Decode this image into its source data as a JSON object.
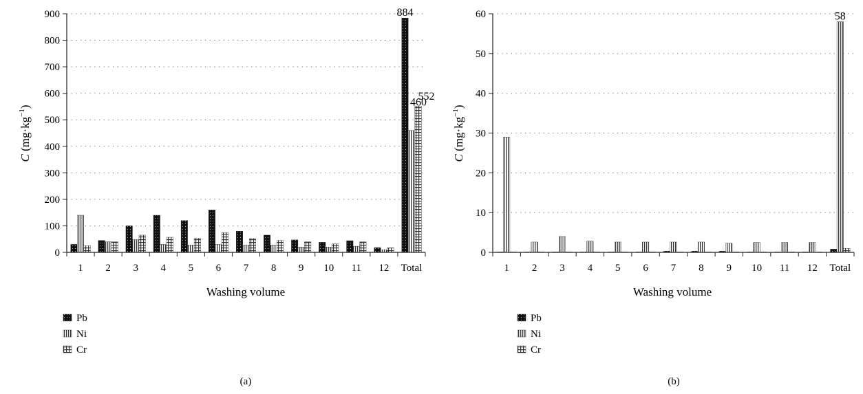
{
  "colors": {
    "pb": "#111111",
    "ni": "#444444",
    "cr": "#555555",
    "axis": "#222222",
    "grid": "#666666"
  },
  "chart_data": [
    {
      "type": "bar",
      "panel_label": "(a)",
      "xlabel": "Washing volume",
      "ylabel_prefix": "C",
      "ylabel_unit": " (mg·kg",
      "ylabel_exp": "−1",
      "ylabel_close": ")",
      "ylim": [
        0,
        900
      ],
      "yticks": [
        "0",
        "100",
        "200",
        "300",
        "400",
        "500",
        "600",
        "700",
        "800",
        "900"
      ],
      "grid": "horizontal dotted",
      "legend_position": "bottom-left",
      "categories": [
        "1",
        "2",
        "3",
        "4",
        "5",
        "6",
        "7",
        "8",
        "9",
        "10",
        "11",
        "12",
        "Total"
      ],
      "series": [
        {
          "name": "Pb",
          "values": [
            30,
            45,
            100,
            140,
            120,
            160,
            80,
            65,
            47,
            38,
            44,
            18,
            884
          ]
        },
        {
          "name": "Ni",
          "values": [
            140,
            40,
            48,
            30,
            28,
            30,
            28,
            28,
            20,
            20,
            23,
            10,
            460
          ]
        },
        {
          "name": "Cr",
          "values": [
            25,
            40,
            65,
            57,
            53,
            75,
            52,
            45,
            40,
            32,
            40,
            17,
            552
          ]
        }
      ],
      "data_labels": [
        {
          "series": "Pb",
          "category": "Total",
          "text": "884"
        },
        {
          "series": "Ni",
          "category": "Total",
          "text": "460"
        },
        {
          "series": "Cr",
          "category": "Total",
          "text": "552"
        }
      ]
    },
    {
      "type": "bar",
      "panel_label": "(b)",
      "xlabel": "Washing volume",
      "ylabel_prefix": "C",
      "ylabel_unit": " (mg·kg",
      "ylabel_exp": "−1",
      "ylabel_close": ")",
      "ylim": [
        0,
        60
      ],
      "yticks": [
        "0",
        "10",
        "20",
        "30",
        "40",
        "50",
        "60"
      ],
      "grid": "horizontal dotted",
      "legend_position": "bottom-left",
      "categories": [
        "1",
        "2",
        "3",
        "4",
        "5",
        "6",
        "7",
        "8",
        "9",
        "10",
        "11",
        "12",
        "Total"
      ],
      "series": [
        {
          "name": "Pb",
          "values": [
            0.1,
            0.05,
            0.05,
            0.05,
            0.05,
            0.05,
            0.3,
            0.3,
            0.3,
            0.05,
            0.05,
            0.05,
            0.8
          ]
        },
        {
          "name": "Ni",
          "values": [
            29,
            2.6,
            4,
            2.8,
            2.6,
            2.6,
            2.6,
            2.6,
            2.3,
            2.5,
            2.5,
            2.5,
            58
          ]
        },
        {
          "name": "Cr",
          "values": [
            0.1,
            0.1,
            0.1,
            0.1,
            0.1,
            0.1,
            0.1,
            0.1,
            0.1,
            0.1,
            0.1,
            0.1,
            1
          ]
        }
      ],
      "data_labels": [
        {
          "series": "Ni",
          "category": "Total",
          "text": "58"
        }
      ]
    }
  ]
}
